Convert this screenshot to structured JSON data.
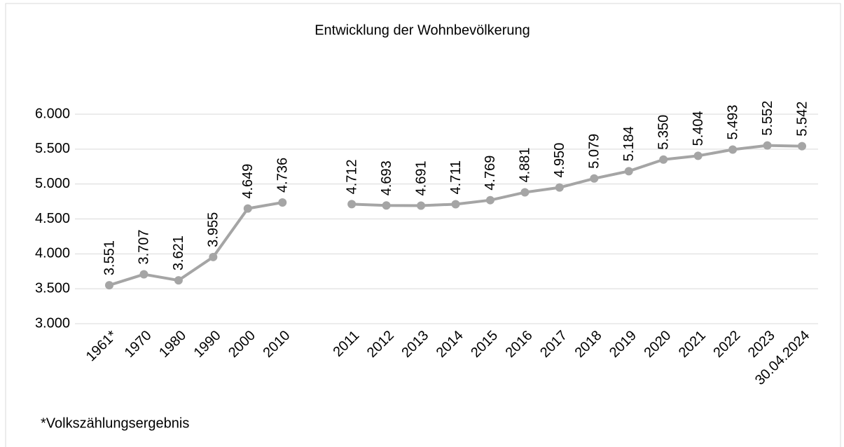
{
  "chart_data": {
    "type": "line",
    "title": "Entwicklung der Wohnbevölkerung",
    "categories": [
      "1961*",
      "1970",
      "1980",
      "1990",
      "2000",
      "2010",
      null,
      "2011",
      "2012",
      "2013",
      "2014",
      "2015",
      "2016",
      "2017",
      "2018",
      "2019",
      "2020",
      "2021",
      "2022",
      "2023",
      "30.04.2024"
    ],
    "series": [
      {
        "name": "Wohnbevölkerung",
        "color": "#a5a5a5",
        "values": [
          3551,
          3707,
          3621,
          3955,
          4649,
          4736,
          null,
          4712,
          4693,
          4691,
          4711,
          4769,
          4881,
          4950,
          5079,
          5184,
          5350,
          5404,
          5493,
          5552,
          5542
        ],
        "value_labels": [
          "3.551",
          "3.707",
          "3.621",
          "3.955",
          "4.649",
          "4.736",
          null,
          "4.712",
          "4.693",
          "4.691",
          "4.711",
          "4.769",
          "4.881",
          "4.950",
          "5.079",
          "5.184",
          "5.350",
          "5.404",
          "5.493",
          "5.552",
          "5.542"
        ]
      }
    ],
    "ylim": [
      3000,
      6000
    ],
    "yticks": [
      {
        "value": 3000,
        "label": "3.000"
      },
      {
        "value": 3500,
        "label": "3.500"
      },
      {
        "value": 4000,
        "label": "4.000"
      },
      {
        "value": 4500,
        "label": "4.500"
      },
      {
        "value": 5000,
        "label": "5.000"
      },
      {
        "value": 5500,
        "label": "5.500"
      },
      {
        "value": 6000,
        "label": "6.000"
      }
    ],
    "grid": true,
    "note": "*Volkszählungsergebnis"
  }
}
